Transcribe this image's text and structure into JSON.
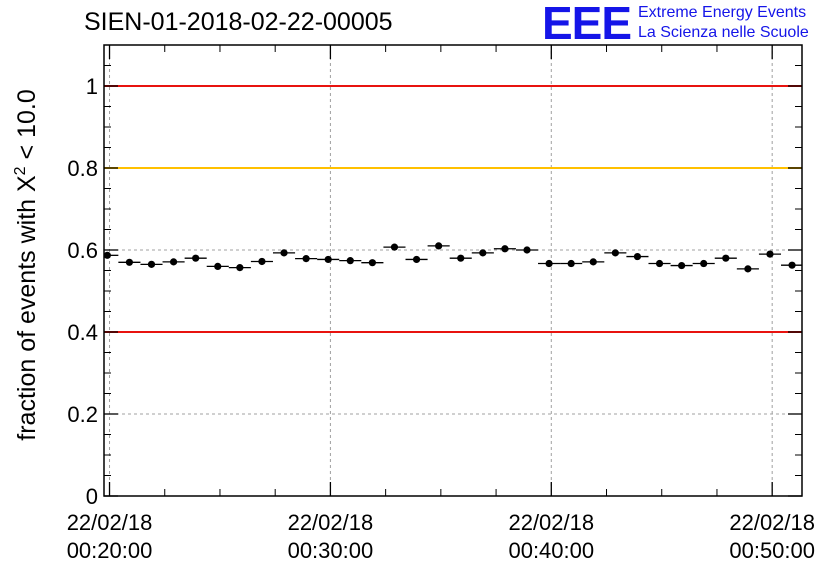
{
  "header": {
    "title": "SIEN-01-2018-02-22-00005",
    "logo_mark": "EEE",
    "logo_line1": "Extreme Energy Events",
    "logo_line2": "La Scienza nelle Scuole",
    "logo_color": "#1515e8"
  },
  "chart_data": {
    "type": "scatter",
    "title": "SIEN-01-2018-02-22-00005",
    "ylabel": "fraction of events with χ² < 10.0",
    "ylabel_parts": {
      "before": "fraction of events with ",
      "symbol": "X",
      "sup": "2",
      "after": " < 10.0"
    },
    "xlabel": "",
    "xlim_minutes": [
      19.75,
      51.35
    ],
    "ylim": [
      0,
      1.1
    ],
    "yticks": [
      0,
      0.2,
      0.4,
      0.6,
      0.8,
      1
    ],
    "ytick_labels": [
      "0",
      "0.2",
      "0.4",
      "0.6",
      "0.8",
      "1"
    ],
    "xticks_minutes": [
      20,
      30,
      40,
      50
    ],
    "xtick_labels": [
      {
        "date": "22/02/18",
        "time": "00:20:00"
      },
      {
        "date": "22/02/18",
        "time": "00:30:00"
      },
      {
        "date": "22/02/18",
        "time": "00:40:00"
      },
      {
        "date": "22/02/18",
        "time": "00:50:00"
      }
    ],
    "grid": true,
    "reference_lines": [
      {
        "value": 1.0,
        "color": "#e8130f"
      },
      {
        "value": 0.8,
        "color": "#ffc000"
      },
      {
        "value": 0.4,
        "color": "#e8130f"
      }
    ],
    "bin_width_minutes": 1,
    "series": [
      {
        "name": "fraction",
        "x_minutes": [
          19.9,
          20.9,
          21.9,
          22.9,
          23.9,
          24.9,
          25.9,
          26.9,
          27.9,
          28.9,
          29.9,
          30.9,
          31.9,
          32.9,
          33.9,
          34.9,
          35.9,
          36.9,
          37.9,
          38.9,
          39.9,
          40.9,
          41.9,
          42.9,
          43.9,
          44.9,
          45.9,
          46.9,
          47.9,
          48.9,
          49.9,
          50.9
        ],
        "values": [
          0.587,
          0.57,
          0.565,
          0.571,
          0.58,
          0.56,
          0.557,
          0.572,
          0.593,
          0.579,
          0.577,
          0.574,
          0.569,
          0.607,
          0.577,
          0.61,
          0.58,
          0.593,
          0.603,
          0.6,
          0.567,
          0.567,
          0.571,
          0.593,
          0.584,
          0.567,
          0.562,
          0.567,
          0.58,
          0.554,
          0.59,
          0.563
        ],
        "error": 0.006
      }
    ]
  }
}
